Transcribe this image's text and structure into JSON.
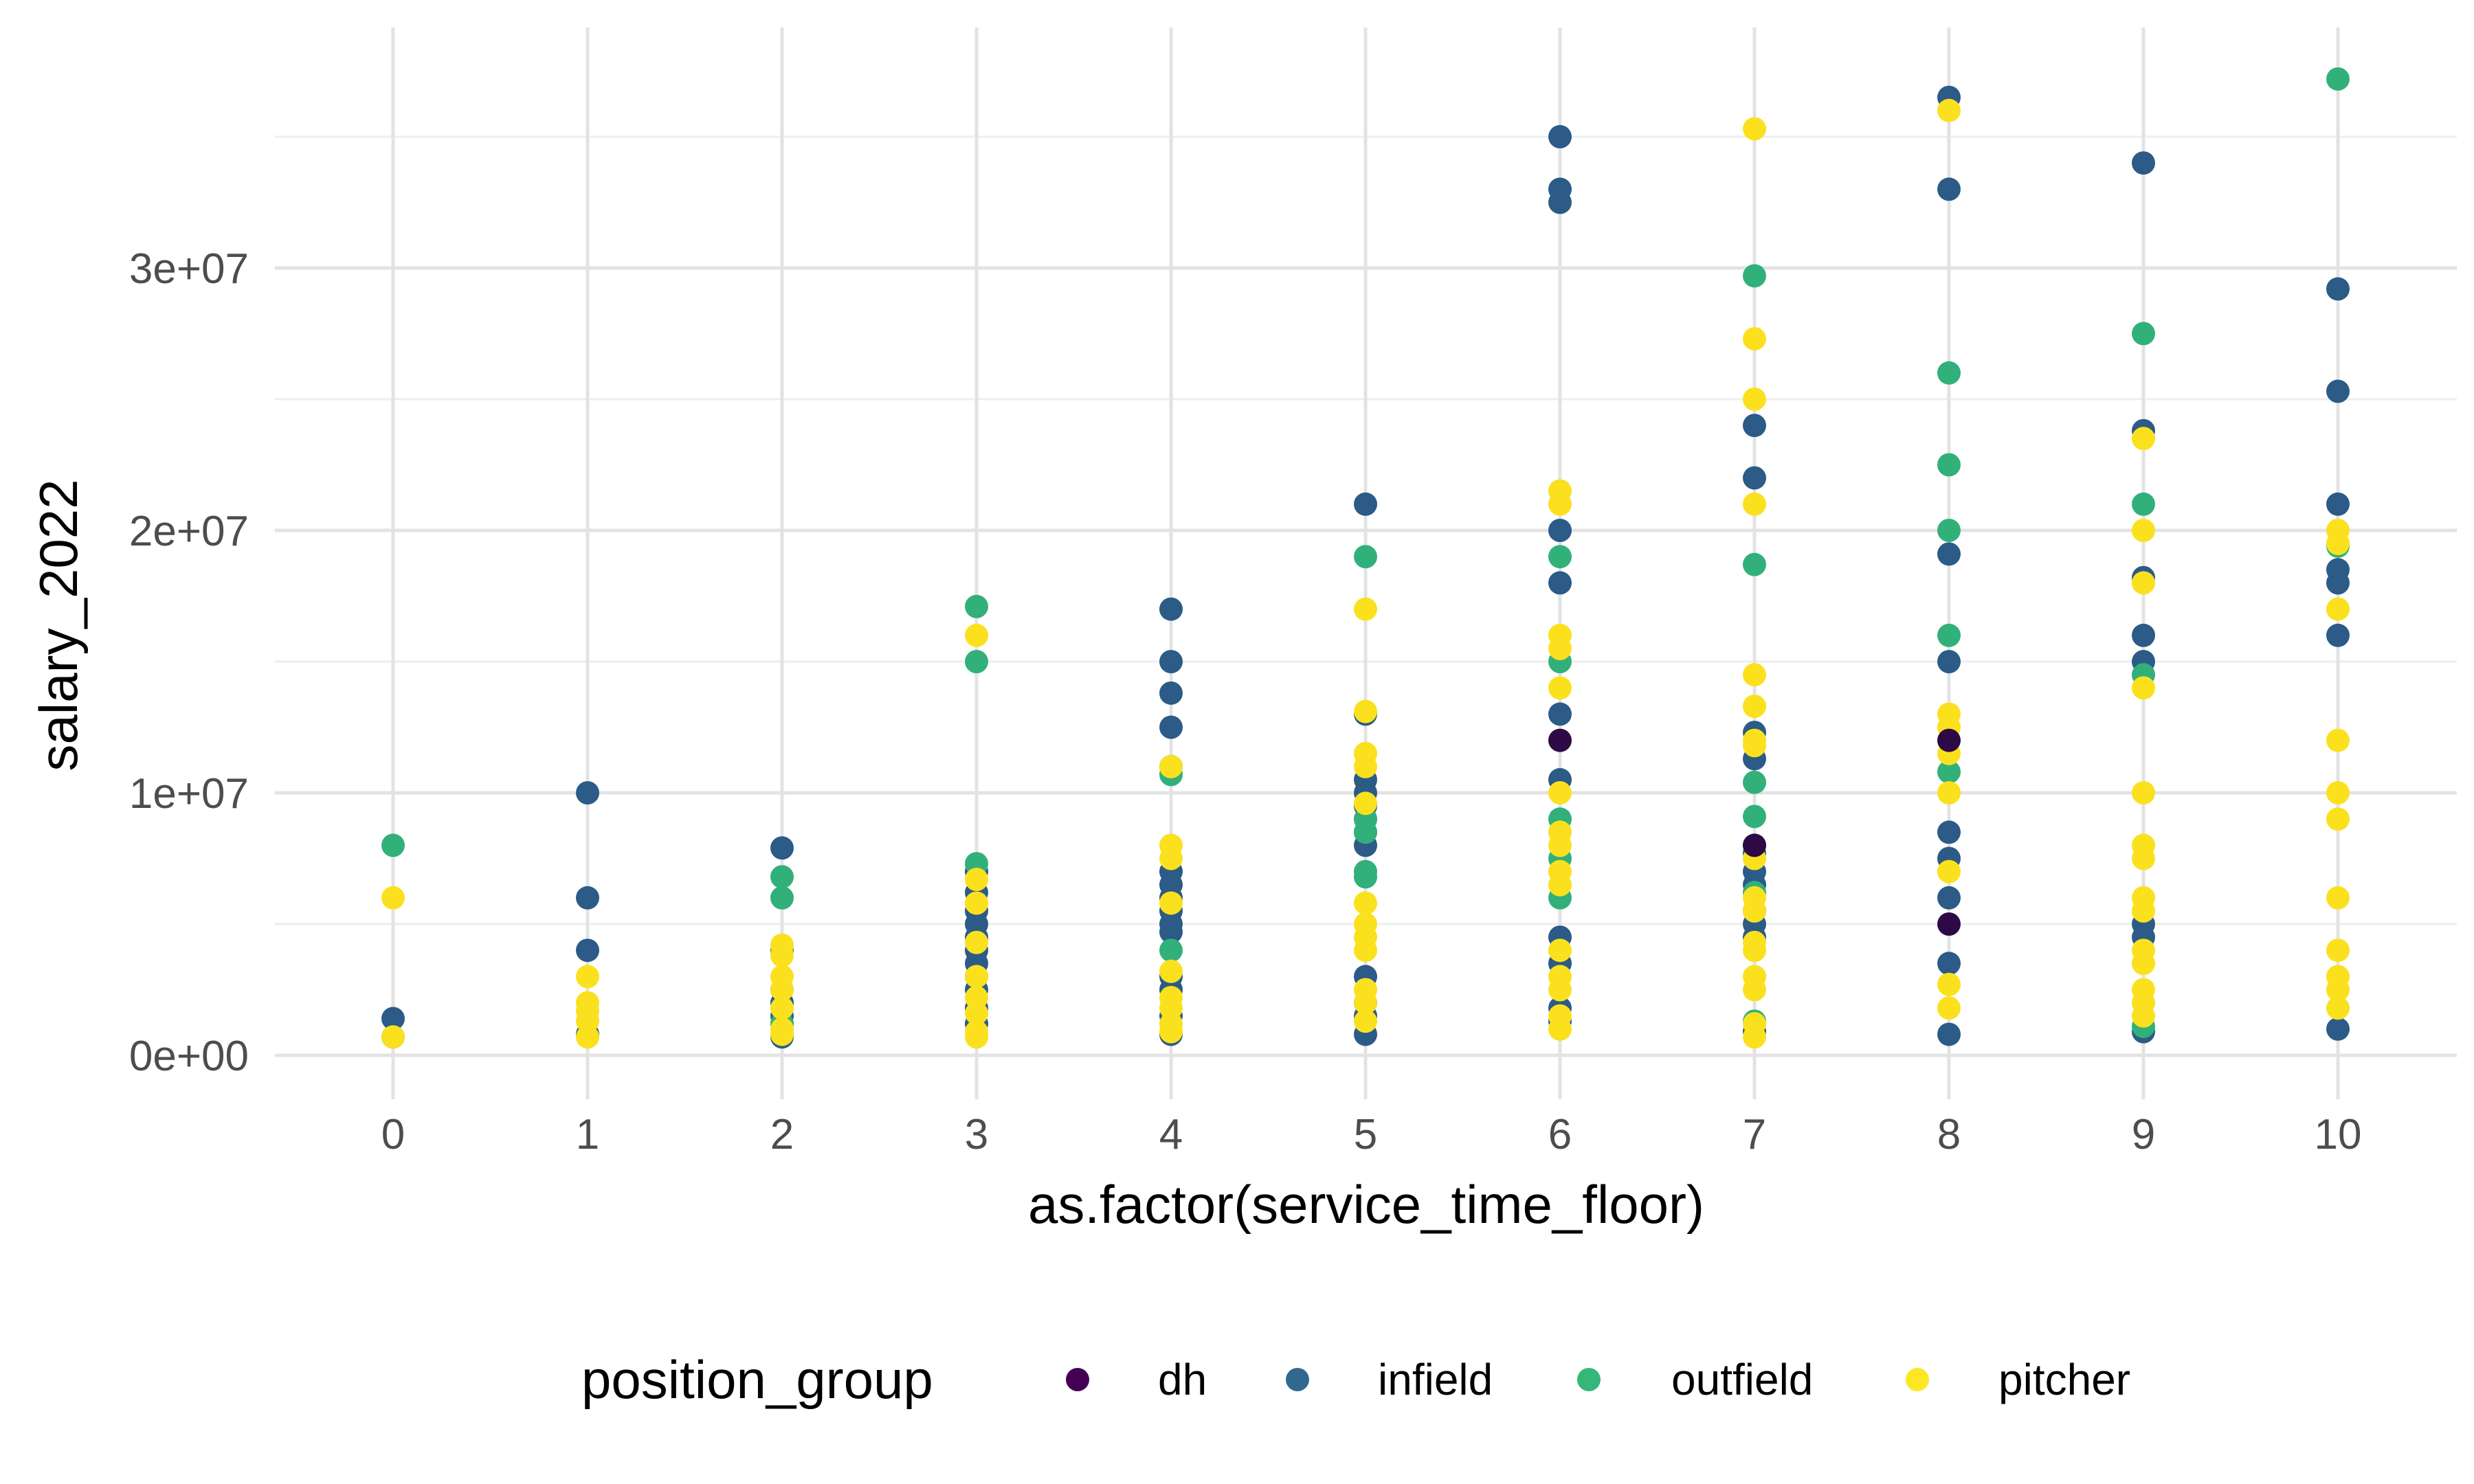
{
  "chart_data": {
    "type": "scatter",
    "title": "",
    "xlabel": "as.factor(service_time_floor)",
    "ylabel": "salary_2022",
    "categories": [
      "0",
      "1",
      "2",
      "3",
      "4",
      "5",
      "6",
      "7",
      "8",
      "9",
      "10"
    ],
    "ylim": [
      -1500000,
      37500000
    ],
    "yticks": [
      {
        "value": 0,
        "label": "0e+00"
      },
      {
        "value": 10000000,
        "label": "1e+07"
      },
      {
        "value": 20000000,
        "label": "2e+07"
      },
      {
        "value": 30000000,
        "label": "3e+07"
      }
    ],
    "grid": true,
    "legend": {
      "title": "position_group",
      "position": "bottom",
      "items": [
        {
          "name": "dh",
          "color": "#440154"
        },
        {
          "name": "infield",
          "color": "#31688E"
        },
        {
          "name": "outfield",
          "color": "#35B779"
        },
        {
          "name": "pitcher",
          "color": "#FDE725"
        }
      ]
    },
    "series": [
      {
        "name": "infield",
        "color": "#2b5b86",
        "points": [
          [
            0,
            1400000
          ],
          [
            0,
            700000
          ],
          [
            1,
            10000000
          ],
          [
            1,
            6000000
          ],
          [
            1,
            4000000
          ],
          [
            1,
            800000
          ],
          [
            2,
            7900000
          ],
          [
            2,
            4000000
          ],
          [
            2,
            2500000
          ],
          [
            2,
            2000000
          ],
          [
            2,
            1500000
          ],
          [
            2,
            1200000
          ],
          [
            2,
            700000
          ],
          [
            3,
            7000000
          ],
          [
            3,
            6200000
          ],
          [
            3,
            5500000
          ],
          [
            3,
            5000000
          ],
          [
            3,
            4500000
          ],
          [
            3,
            4000000
          ],
          [
            3,
            3500000
          ],
          [
            3,
            3000000
          ],
          [
            3,
            2500000
          ],
          [
            3,
            1800000
          ],
          [
            3,
            1200000
          ],
          [
            4,
            17000000
          ],
          [
            4,
            15000000
          ],
          [
            4,
            13800000
          ],
          [
            4,
            12500000
          ],
          [
            4,
            11000000
          ],
          [
            4,
            7000000
          ],
          [
            4,
            6500000
          ],
          [
            4,
            6000000
          ],
          [
            4,
            5500000
          ],
          [
            4,
            5000000
          ],
          [
            4,
            4700000
          ],
          [
            4,
            3000000
          ],
          [
            4,
            2500000
          ],
          [
            4,
            1500000
          ],
          [
            4,
            800000
          ],
          [
            5,
            21000000
          ],
          [
            5,
            13000000
          ],
          [
            5,
            10500000
          ],
          [
            5,
            10000000
          ],
          [
            5,
            9500000
          ],
          [
            5,
            9000000
          ],
          [
            5,
            8500000
          ],
          [
            5,
            8000000
          ],
          [
            5,
            3000000
          ],
          [
            5,
            2000000
          ],
          [
            5,
            1500000
          ],
          [
            5,
            800000
          ],
          [
            6,
            35000000
          ],
          [
            6,
            33000000
          ],
          [
            6,
            32500000
          ],
          [
            6,
            20000000
          ],
          [
            6,
            18000000
          ],
          [
            6,
            13000000
          ],
          [
            6,
            10500000
          ],
          [
            6,
            4500000
          ],
          [
            6,
            3500000
          ],
          [
            6,
            1800000
          ],
          [
            6,
            1300000
          ],
          [
            7,
            24000000
          ],
          [
            7,
            22000000
          ],
          [
            7,
            12300000
          ],
          [
            7,
            11300000
          ],
          [
            7,
            8000000
          ],
          [
            7,
            7700000
          ],
          [
            7,
            7000000
          ],
          [
            7,
            6500000
          ],
          [
            7,
            5500000
          ],
          [
            7,
            5000000
          ],
          [
            7,
            4500000
          ],
          [
            7,
            900000
          ],
          [
            8,
            36500000
          ],
          [
            8,
            33000000
          ],
          [
            8,
            19100000
          ],
          [
            8,
            15000000
          ],
          [
            8,
            8500000
          ],
          [
            8,
            7500000
          ],
          [
            8,
            6000000
          ],
          [
            8,
            3500000
          ],
          [
            8,
            800000
          ],
          [
            9,
            34000000
          ],
          [
            9,
            23800000
          ],
          [
            9,
            18200000
          ],
          [
            9,
            16000000
          ],
          [
            9,
            15000000
          ],
          [
            9,
            5000000
          ],
          [
            9,
            4500000
          ],
          [
            9,
            900000
          ],
          [
            10,
            29200000
          ],
          [
            10,
            25300000
          ],
          [
            10,
            21000000
          ],
          [
            10,
            18500000
          ],
          [
            10,
            18000000
          ],
          [
            10,
            16000000
          ],
          [
            10,
            1000000
          ]
        ]
      },
      {
        "name": "outfield",
        "color": "#32b07a",
        "points": [
          [
            0,
            8000000
          ],
          [
            2,
            6800000
          ],
          [
            2,
            6000000
          ],
          [
            2,
            4000000
          ],
          [
            2,
            1200000
          ],
          [
            3,
            17100000
          ],
          [
            3,
            15000000
          ],
          [
            3,
            7300000
          ],
          [
            4,
            10700000
          ],
          [
            4,
            4000000
          ],
          [
            5,
            19000000
          ],
          [
            5,
            9000000
          ],
          [
            5,
            8500000
          ],
          [
            5,
            7000000
          ],
          [
            5,
            6800000
          ],
          [
            6,
            19000000
          ],
          [
            6,
            15000000
          ],
          [
            6,
            9000000
          ],
          [
            6,
            7500000
          ],
          [
            6,
            6000000
          ],
          [
            7,
            29700000
          ],
          [
            7,
            18700000
          ],
          [
            7,
            10400000
          ],
          [
            7,
            9100000
          ],
          [
            7,
            6200000
          ],
          [
            7,
            1300000
          ],
          [
            8,
            26000000
          ],
          [
            8,
            22500000
          ],
          [
            8,
            20000000
          ],
          [
            8,
            16000000
          ],
          [
            8,
            10800000
          ],
          [
            9,
            27500000
          ],
          [
            9,
            21000000
          ],
          [
            9,
            14500000
          ],
          [
            9,
            1100000
          ],
          [
            10,
            37200000
          ],
          [
            10,
            19400000
          ]
        ]
      },
      {
        "name": "pitcher",
        "color": "#fbe11d",
        "points": [
          [
            0,
            6000000
          ],
          [
            0,
            700000
          ],
          [
            1,
            3000000
          ],
          [
            1,
            2000000
          ],
          [
            1,
            1700000
          ],
          [
            1,
            1300000
          ],
          [
            1,
            700000
          ],
          [
            2,
            4200000
          ],
          [
            2,
            3800000
          ],
          [
            2,
            3000000
          ],
          [
            2,
            2500000
          ],
          [
            2,
            1800000
          ],
          [
            2,
            1000000
          ],
          [
            2,
            800000
          ],
          [
            3,
            16000000
          ],
          [
            3,
            6700000
          ],
          [
            3,
            5800000
          ],
          [
            3,
            4300000
          ],
          [
            3,
            3000000
          ],
          [
            3,
            2200000
          ],
          [
            3,
            1600000
          ],
          [
            3,
            900000
          ],
          [
            3,
            700000
          ],
          [
            4,
            11000000
          ],
          [
            4,
            8000000
          ],
          [
            4,
            7500000
          ],
          [
            4,
            5800000
          ],
          [
            4,
            3200000
          ],
          [
            4,
            2200000
          ],
          [
            4,
            1800000
          ],
          [
            4,
            1200000
          ],
          [
            4,
            900000
          ],
          [
            5,
            17000000
          ],
          [
            5,
            13100000
          ],
          [
            5,
            11500000
          ],
          [
            5,
            11000000
          ],
          [
            5,
            9600000
          ],
          [
            5,
            5800000
          ],
          [
            5,
            5000000
          ],
          [
            5,
            4500000
          ],
          [
            5,
            4000000
          ],
          [
            5,
            2500000
          ],
          [
            5,
            2000000
          ],
          [
            5,
            1300000
          ],
          [
            6,
            21500000
          ],
          [
            6,
            21000000
          ],
          [
            6,
            16000000
          ],
          [
            6,
            15500000
          ],
          [
            6,
            14000000
          ],
          [
            6,
            12000000
          ],
          [
            6,
            10000000
          ],
          [
            6,
            8500000
          ],
          [
            6,
            8000000
          ],
          [
            6,
            7000000
          ],
          [
            6,
            6500000
          ],
          [
            6,
            4000000
          ],
          [
            6,
            3000000
          ],
          [
            6,
            2500000
          ],
          [
            6,
            1500000
          ],
          [
            6,
            1000000
          ],
          [
            7,
            35300000
          ],
          [
            7,
            27300000
          ],
          [
            7,
            25000000
          ],
          [
            7,
            21000000
          ],
          [
            7,
            14500000
          ],
          [
            7,
            13300000
          ],
          [
            7,
            12000000
          ],
          [
            7,
            11800000
          ],
          [
            7,
            7500000
          ],
          [
            7,
            6000000
          ],
          [
            7,
            5500000
          ],
          [
            7,
            4300000
          ],
          [
            7,
            4000000
          ],
          [
            7,
            3000000
          ],
          [
            7,
            2500000
          ],
          [
            7,
            1200000
          ],
          [
            7,
            700000
          ],
          [
            8,
            36000000
          ],
          [
            8,
            13000000
          ],
          [
            8,
            12500000
          ],
          [
            8,
            11500000
          ],
          [
            8,
            10000000
          ],
          [
            8,
            7000000
          ],
          [
            8,
            2700000
          ],
          [
            8,
            1800000
          ],
          [
            9,
            23500000
          ],
          [
            9,
            20000000
          ],
          [
            9,
            18000000
          ],
          [
            9,
            14000000
          ],
          [
            9,
            10000000
          ],
          [
            9,
            8000000
          ],
          [
            9,
            7500000
          ],
          [
            9,
            6000000
          ],
          [
            9,
            5500000
          ],
          [
            9,
            4000000
          ],
          [
            9,
            3500000
          ],
          [
            9,
            2500000
          ],
          [
            9,
            2000000
          ],
          [
            9,
            1500000
          ],
          [
            10,
            20000000
          ],
          [
            10,
            19500000
          ],
          [
            10,
            17000000
          ],
          [
            10,
            12000000
          ],
          [
            10,
            10000000
          ],
          [
            10,
            9000000
          ],
          [
            10,
            6000000
          ],
          [
            10,
            4000000
          ],
          [
            10,
            3000000
          ],
          [
            10,
            2500000
          ],
          [
            10,
            1800000
          ]
        ]
      },
      {
        "name": "dh",
        "color": "#2d0a46",
        "points": [
          [
            6,
            12000000
          ],
          [
            7,
            8000000
          ],
          [
            8,
            12000000
          ],
          [
            8,
            5000000
          ]
        ]
      }
    ]
  }
}
